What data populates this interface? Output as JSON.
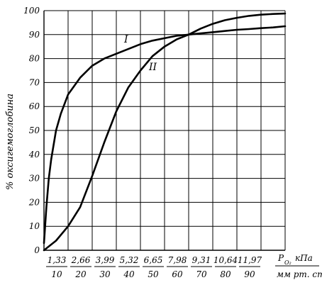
{
  "chart_data": {
    "type": "line",
    "ylabel": "% оксигемоглобина",
    "xunit_top": "кПа",
    "xunit_symbol": "P",
    "xunit_subscript": "O₂",
    "xunit_bottom": "мм рт. ст.",
    "xlim": [
      0,
      100
    ],
    "ylim": [
      0,
      100
    ],
    "grid": true,
    "y_ticks": [
      "0",
      "10",
      "20",
      "30",
      "40",
      "50",
      "60",
      "70",
      "80",
      "90",
      "100"
    ],
    "x_ticks_kpa": [
      "1,33",
      "2,66",
      "3,99",
      "5,32",
      "6,65",
      "7,98",
      "9,31",
      "10,64",
      "11,97"
    ],
    "x_ticks_mmhg": [
      "10",
      "20",
      "30",
      "40",
      "50",
      "60",
      "70",
      "80",
      "90"
    ],
    "series": [
      {
        "name": "I",
        "x": [
          0,
          1,
          2,
          3,
          5,
          7,
          10,
          15,
          20,
          25,
          30,
          35,
          40,
          45,
          50,
          55,
          60,
          65,
          70,
          75,
          80,
          85,
          90,
          95,
          100
        ],
        "y": [
          3,
          18,
          30,
          38,
          50,
          57,
          65,
          72,
          77,
          80,
          82,
          84,
          86,
          87.5,
          88.5,
          89.5,
          90,
          90.5,
          91,
          91.5,
          92,
          92.3,
          92.7,
          93,
          93.5
        ]
      },
      {
        "name": "II",
        "x": [
          0,
          5,
          10,
          15,
          20,
          25,
          30,
          35,
          40,
          45,
          50,
          55,
          60,
          65,
          70,
          75,
          80,
          85,
          90,
          95,
          100
        ],
        "y": [
          0,
          4,
          10,
          18,
          31,
          45,
          58,
          68,
          75,
          81,
          85,
          88,
          90,
          92.5,
          94.5,
          96,
          97,
          97.8,
          98.3,
          98.6,
          98.8
        ]
      }
    ]
  }
}
